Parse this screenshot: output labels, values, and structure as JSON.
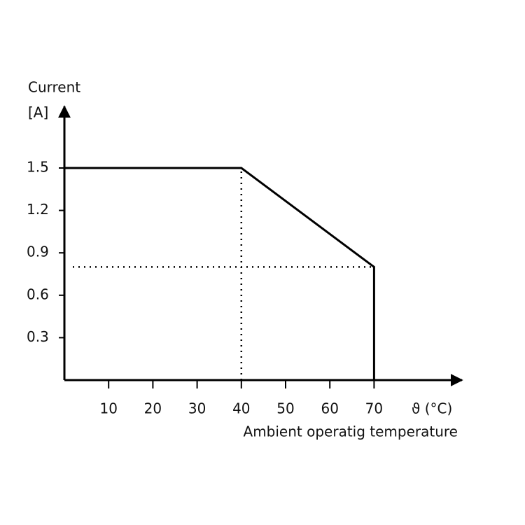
{
  "chart_data": {
    "type": "line",
    "y_label": "Current",
    "y_unit": "[A]",
    "x_unit": "ϑ (°C)",
    "x_label": "Ambient operatig temperature",
    "series": [
      {
        "color": "#000000",
        "x": [
          0,
          40,
          70,
          70
        ],
        "values": [
          1.5,
          1.5,
          0.8,
          0
        ]
      }
    ],
    "x_guides": [
      40
    ],
    "y_guides": [
      0.8
    ],
    "xlim": [
      0,
      89
    ],
    "ylim": [
      0,
      1.95
    ],
    "xticks": [
      10,
      20,
      30,
      40,
      50,
      60,
      70
    ],
    "yticks": [
      0.3,
      0.6,
      0.9,
      1.2,
      1.5
    ],
    "grid": false
  }
}
